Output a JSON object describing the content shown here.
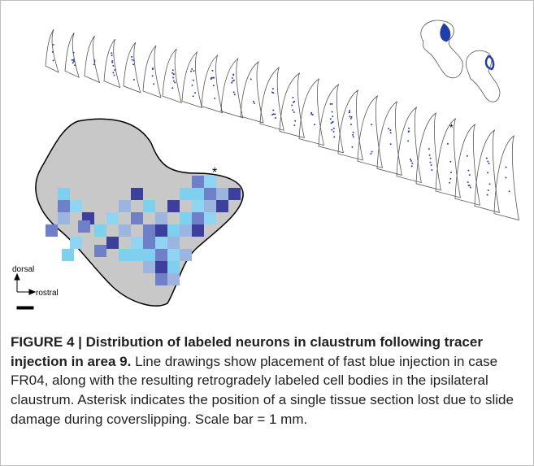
{
  "figure": {
    "asterisk": "*",
    "dorsal": "dorsal",
    "rostral": "rostral"
  },
  "caption": {
    "title": "FIGURE 4 | Distribution of labeled neurons in claustrum following tracer injection in area 9.",
    "body": "Line drawings show placement of fast blue injection in case FR04, along with the resulting retrogradely labeled cell bodies in the ipsilateral claustrum. Asterisk indicates the position of a single tissue section lost due to slide damage during coverslipping. Scale bar = 1 mm."
  }
}
